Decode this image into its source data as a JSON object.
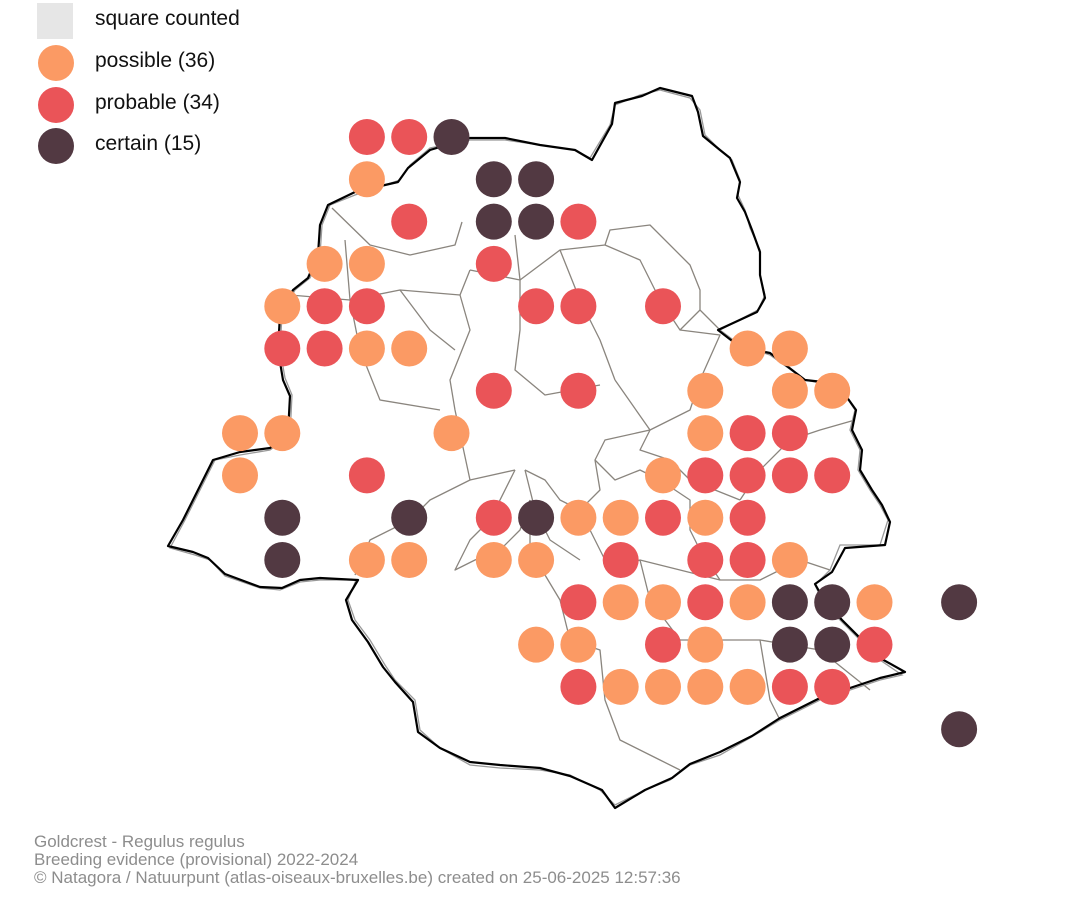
{
  "legend": {
    "items": [
      {
        "key": "counted",
        "label": "square counted",
        "color": "#e6e6e6",
        "shape": "square"
      },
      {
        "key": "possible",
        "label": "possible (36)",
        "color": "#fb9a64",
        "shape": "circle"
      },
      {
        "key": "probable",
        "label": "probable (34)",
        "color": "#ea5458",
        "shape": "circle"
      },
      {
        "key": "certain",
        "label": "certain (15)",
        "color": "#523942",
        "shape": "circle"
      }
    ]
  },
  "caption": {
    "species": "Goldcrest - Regulus regulus",
    "subtitle": "Breeding evidence (provisional) 2022-2024",
    "credit": "© Natagora / Natuurpunt (atlas-oiseaux-bruxelles.be) created on 25-06-2025 12:57:36"
  },
  "map": {
    "region": "Brussels",
    "colors": {
      "boundary": "#000000",
      "municipality_lines": "#8a857e"
    },
    "squares": [
      [
        "probable",
        "probable",
        "certain",
        null,
        null,
        null,
        null,
        null,
        null,
        null,
        null,
        null,
        null,
        null,
        null,
        null
      ],
      [
        "possible",
        null,
        null,
        "certain",
        "certain",
        null,
        null,
        null,
        null,
        null,
        null,
        null,
        null,
        null,
        null,
        null
      ],
      [
        null,
        "probable",
        null,
        "certain",
        "certain",
        "probable",
        null,
        null,
        null,
        null,
        null,
        null,
        null,
        null,
        null,
        null
      ],
      [
        "possible",
        "possible",
        null,
        null,
        "probable",
        null,
        null,
        null,
        null,
        null,
        null,
        null,
        null,
        null,
        null,
        null
      ],
      [
        "possible",
        "probable",
        "probable",
        null,
        null,
        null,
        "probable",
        "probable",
        null,
        "probable",
        null,
        null,
        null,
        null,
        null,
        null
      ],
      [
        "probable",
        "probable",
        "possible",
        "possible",
        null,
        null,
        null,
        null,
        null,
        null,
        null,
        "possible",
        "possible",
        null,
        null,
        null
      ],
      [
        null,
        null,
        null,
        null,
        null,
        "probable",
        null,
        "probable",
        null,
        null,
        "possible",
        null,
        "possible",
        "possible",
        null,
        null
      ],
      [
        "possible",
        "possible",
        null,
        null,
        null,
        "possible",
        null,
        null,
        null,
        null,
        null,
        "possible",
        "probable",
        "probable",
        null,
        null
      ],
      [
        "possible",
        null,
        null,
        "probable",
        null,
        null,
        null,
        null,
        null,
        null,
        "possible",
        "probable",
        "probable",
        "probable",
        "probable",
        null
      ],
      [
        null,
        "certain",
        null,
        null,
        "certain",
        null,
        "probable",
        "certain",
        "possible",
        "possible",
        "probable",
        "possible",
        "probable",
        null,
        null,
        null
      ],
      [
        null,
        "certain",
        null,
        "possible",
        "possible",
        null,
        "possible",
        "possible",
        null,
        "probable",
        null,
        "probable",
        "probable",
        "possible",
        null,
        null
      ],
      [
        null,
        null,
        null,
        null,
        null,
        "probable",
        "possible",
        "possible",
        "probable",
        "possible",
        "certain",
        "certain",
        "possible",
        null,
        "certain",
        null
      ],
      [
        null,
        null,
        null,
        null,
        "possible",
        "possible",
        null,
        "probable",
        "possible",
        null,
        "certain",
        "certain",
        "probable",
        null,
        null,
        null
      ],
      [
        null,
        null,
        null,
        null,
        null,
        "probable",
        "possible",
        "possible",
        "possible",
        "possible",
        "probable",
        "probable",
        null,
        null,
        null,
        null
      ],
      [
        null,
        null,
        null,
        null,
        null,
        null,
        null,
        null,
        null,
        "certain",
        null,
        null,
        null,
        null,
        null,
        null
      ]
    ],
    "row_start_col": [
      5,
      5,
      5,
      4,
      3,
      3,
      3,
      2,
      2,
      2,
      2,
      5,
      5,
      5,
      10
    ]
  }
}
